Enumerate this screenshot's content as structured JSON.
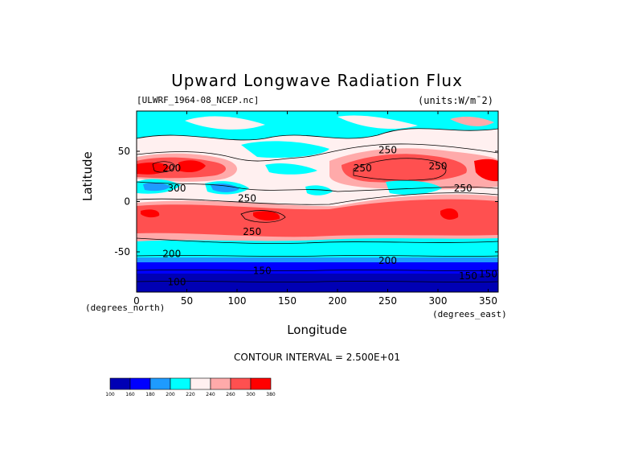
{
  "chart_data": {
    "type": "heatmap",
    "title": "Upward Longwave Radiation Flux",
    "source": "[ULWRF_1964-08_NCEP.nc]",
    "units": "(units:W/m¯2)",
    "xlabel": "Longitude",
    "ylabel": "Latitude",
    "x_units": "(degrees_north)",
    "x_units2": "(degrees_east)",
    "xlim": [
      0,
      360
    ],
    "ylim": [
      -90,
      90
    ],
    "xticks": [
      "0",
      "50",
      "100",
      "150",
      "200",
      "250",
      "300",
      "350"
    ],
    "yticks": [
      "50",
      "0",
      "-50"
    ],
    "contour_interval": "CONTOUR INTERVAL = 2.500E+01",
    "contour_labels": [
      "250",
      "250",
      "250",
      "250",
      "250",
      "250",
      "200",
      "200",
      "200",
      "300",
      "150",
      "150",
      "100",
      "150"
    ],
    "colorbar": {
      "levels": [
        "100",
        "160",
        "180",
        "200",
        "220",
        "240",
        "260",
        "300",
        "380"
      ],
      "colors": [
        "#0000b4",
        "#0000ff",
        "#1e9bff",
        "#00ffff",
        "#fff0f0",
        "#ffaaaa",
        "#ff5050",
        "#ff0000"
      ]
    },
    "latitude_bands": [
      {
        "lat": [
          -90,
          -72
        ],
        "value": 140
      },
      {
        "lat": [
          -72,
          -60
        ],
        "value": 170
      },
      {
        "lat": [
          -60,
          -45
        ],
        "value": 210
      },
      {
        "lat": [
          -45,
          -35
        ],
        "value": 235
      },
      {
        "lat": [
          -35,
          -10
        ],
        "value": 280
      },
      {
        "lat": [
          -10,
          10
        ],
        "value": 250
      },
      {
        "lat": [
          10,
          20
        ],
        "value": 215
      },
      {
        "lat": [
          20,
          45
        ],
        "value": 280
      },
      {
        "lat": [
          45,
          65
        ],
        "value": 230
      },
      {
        "lat": [
          65,
          90
        ],
        "value": 215
      }
    ]
  }
}
